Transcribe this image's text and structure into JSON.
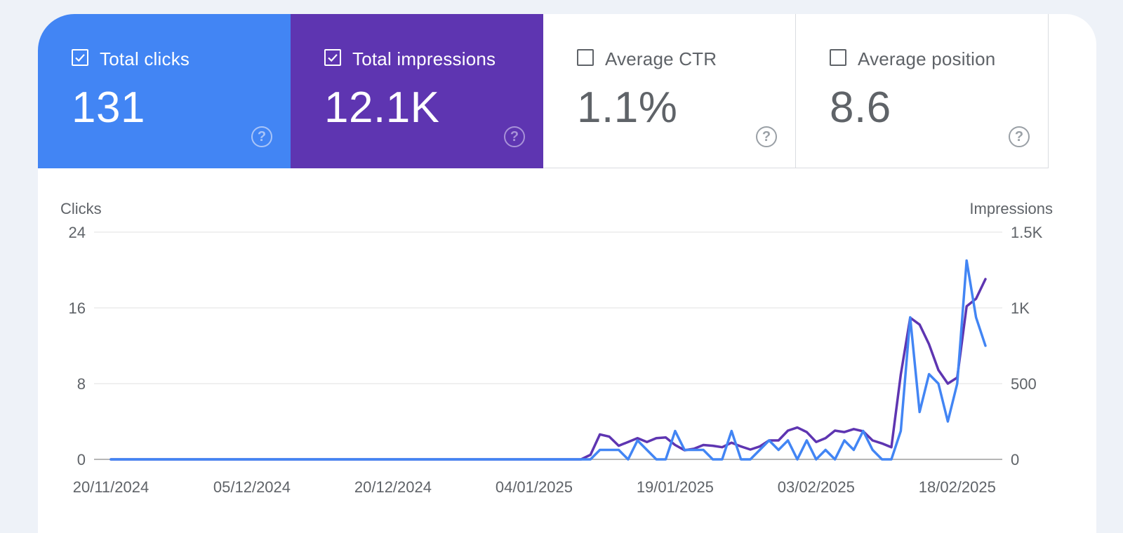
{
  "metrics": [
    {
      "label": "Total clicks",
      "value": "131",
      "checked": true,
      "help_icon": "help-circle-icon"
    },
    {
      "label": "Total impressions",
      "value": "12.1K",
      "checked": true,
      "help_icon": "help-circle-icon"
    },
    {
      "label": "Average CTR",
      "value": "1.1%",
      "checked": false,
      "help_icon": "help-circle-icon"
    },
    {
      "label": "Average position",
      "value": "8.6",
      "checked": false,
      "help_icon": "help-circle-icon"
    }
  ],
  "colors": {
    "clicks": "#4285f4",
    "impressions": "#5e35b1",
    "grid": "#e0e0e0",
    "axis_text": "#5f6368"
  },
  "chart_data": {
    "type": "line",
    "y_left_label": "Clicks",
    "y_right_label": "Impressions",
    "y_left_ticks": [
      "0",
      "8",
      "16",
      "24"
    ],
    "y_left_tick_values": [
      0,
      8,
      16,
      24
    ],
    "y_right_ticks": [
      "0",
      "500",
      "1K",
      "1.5K"
    ],
    "y_right_tick_values": [
      0,
      500,
      1000,
      1500
    ],
    "ylim_left": [
      0,
      24
    ],
    "ylim_right": [
      0,
      1500
    ],
    "x_start": "20/11/2024",
    "x_ticks": [
      "20/11/2024",
      "05/12/2024",
      "20/12/2024",
      "04/01/2025",
      "19/01/2025",
      "03/02/2025",
      "18/02/2025"
    ],
    "grid": true,
    "series": [
      {
        "name": "Clicks",
        "axis": "left",
        "values": [
          0,
          0,
          0,
          0,
          0,
          0,
          0,
          0,
          0,
          0,
          0,
          0,
          0,
          0,
          0,
          0,
          0,
          0,
          0,
          0,
          0,
          0,
          0,
          0,
          0,
          0,
          0,
          0,
          0,
          0,
          0,
          0,
          0,
          0,
          0,
          0,
          0,
          0,
          0,
          0,
          0,
          0,
          0,
          0,
          0,
          0,
          0,
          0,
          0,
          0,
          0,
          0,
          1,
          1,
          1,
          0,
          2,
          1,
          0,
          0,
          3,
          1,
          1,
          1,
          0,
          0,
          3,
          0,
          0,
          1,
          2,
          1,
          2,
          0,
          2,
          0,
          1,
          0,
          2,
          1,
          3,
          1,
          0,
          0,
          3,
          15,
          5,
          9,
          8,
          4,
          8,
          21,
          15,
          12
        ]
      },
      {
        "name": "Impressions",
        "axis": "right",
        "values": [
          0,
          0,
          0,
          0,
          0,
          0,
          0,
          0,
          0,
          0,
          0,
          0,
          0,
          0,
          0,
          0,
          0,
          0,
          0,
          0,
          0,
          0,
          0,
          0,
          0,
          0,
          0,
          0,
          0,
          0,
          0,
          0,
          0,
          0,
          0,
          0,
          0,
          0,
          0,
          0,
          0,
          0,
          0,
          0,
          0,
          0,
          0,
          0,
          0,
          0,
          0,
          30,
          165,
          150,
          90,
          115,
          140,
          115,
          140,
          145,
          95,
          60,
          70,
          95,
          90,
          80,
          110,
          85,
          65,
          85,
          125,
          125,
          190,
          210,
          180,
          115,
          140,
          190,
          180,
          200,
          185,
          125,
          105,
          80,
          560,
          935,
          890,
          760,
          590,
          500,
          540,
          1010,
          1060,
          1190
        ]
      }
    ]
  }
}
